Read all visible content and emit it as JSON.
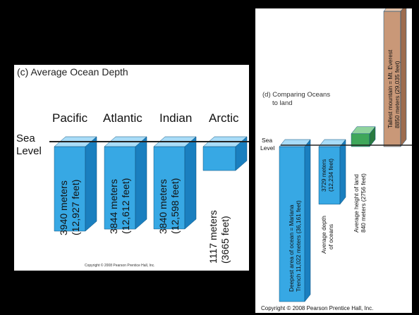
{
  "panel_c": {
    "title": "(c) Average Ocean Depth",
    "sea_level": [
      "Sea",
      "Level"
    ],
    "oceans": [
      {
        "name": "Pacific",
        "depth_m": 3940,
        "line1": "3940 meters",
        "line2": "(12,927 feet)"
      },
      {
        "name": "Atlantic",
        "depth_m": 3844,
        "line1": "3844 meters",
        "line2": "(12,612 feet)"
      },
      {
        "name": "Indian",
        "depth_m": 3840,
        "line1": "3840 meters",
        "line2": "(12,598 feet)"
      },
      {
        "name": "Arctic",
        "depth_m": 1117,
        "line1": "1117 meters",
        "line2": "(3665 feet)"
      }
    ],
    "copyright": "Copyright © 2008 Pearson Prentice Hall, Inc."
  },
  "panel_d": {
    "title": [
      "(d) Comparing Oceans",
      "to land"
    ],
    "sea_level": [
      "Sea",
      "Level"
    ],
    "bars": [
      {
        "value_m": -11022,
        "line1": "Deepest area of ocean = Mariana",
        "line2": "Trench 11,022 meters (36,161 feet)"
      },
      {
        "value_m": -3729,
        "line1": "3729 meters",
        "line2": "(12,234 feet)",
        "caption1": "Average depth",
        "caption2": "of oceans"
      },
      {
        "value_m": 840,
        "caption1": "Average height of land",
        "caption2": "840 meters (2756 feet)"
      },
      {
        "value_m": 8850,
        "line1": "Tallest mountain = Mt. Everest",
        "line2": "8850 meters (29,035 feet)"
      }
    ],
    "copyright": "Copyright © 2008 Pearson Prentice Hall, Inc."
  },
  "colors": {
    "ocean_front": "#37a8e4",
    "ocean_side": "#1a7fbf",
    "ocean_top": "#a9dcf7",
    "land_front": "#3fa75a",
    "land_side": "#2a7a3f",
    "land_top": "#8fd39d",
    "mountain_front": "#c99878",
    "mountain_side": "#9d6c4e",
    "mountain_top": "#e3c2aa"
  }
}
